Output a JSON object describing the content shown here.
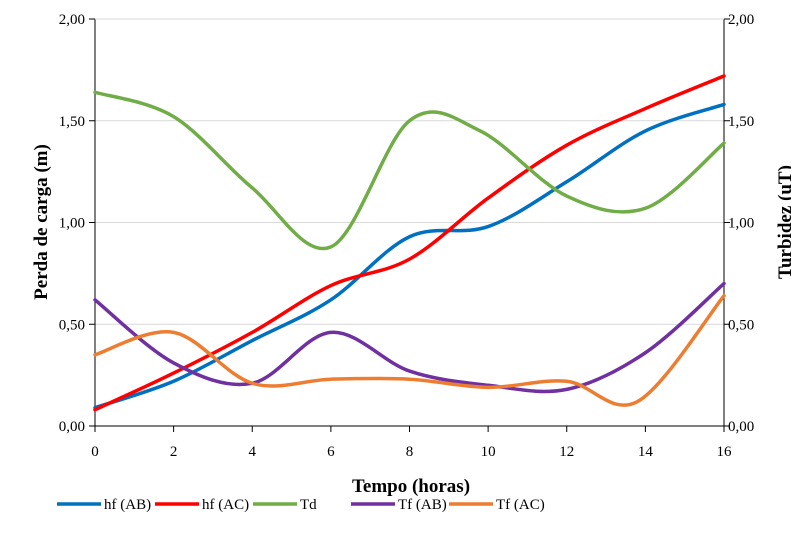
{
  "chart_data": {
    "type": "line",
    "xlabel": "Tempo (horas)",
    "ylabel": "Perda de carga (m)",
    "y2label": "Turbidez (uT)",
    "xlim": [
      0,
      16
    ],
    "ylim": [
      0,
      2
    ],
    "y2lim": [
      0,
      2
    ],
    "x_ticks": [
      "0",
      "2",
      "4",
      "6",
      "8",
      "10",
      "12",
      "14",
      "16"
    ],
    "y_ticks": [
      "0,00",
      "0,50",
      "1,00",
      "1,50",
      "2,00"
    ],
    "y2_ticks": [
      "0,00",
      "0,50",
      "1,00",
      "1,50",
      "2,00"
    ],
    "grid": true,
    "legend_position": "bottom",
    "series": [
      {
        "name": "hf (AB)",
        "color": "#0070C0",
        "axis": "left",
        "x": [
          0,
          2,
          4,
          6,
          8,
          10,
          12,
          14,
          16
        ],
        "y": [
          0.09,
          0.22,
          0.42,
          0.62,
          0.93,
          0.98,
          1.2,
          1.45,
          1.58
        ]
      },
      {
        "name": "hf (AC)",
        "color": "#FF0000",
        "axis": "left",
        "x": [
          0,
          2,
          4,
          6,
          8,
          10,
          12,
          14,
          16
        ],
        "y": [
          0.08,
          0.26,
          0.46,
          0.69,
          0.82,
          1.12,
          1.38,
          1.56,
          1.72
        ]
      },
      {
        "name": "Td",
        "color": "#70AD47",
        "axis": "right",
        "x": [
          0,
          2,
          4,
          6,
          8,
          9.8,
          12,
          14,
          16
        ],
        "y": [
          1.64,
          1.52,
          1.17,
          0.88,
          1.5,
          1.45,
          1.13,
          1.07,
          1.39
        ]
      },
      {
        "name": "Tf (AB)",
        "color": "#7030A0",
        "axis": "right",
        "x": [
          0,
          2,
          4,
          6,
          8,
          10,
          12,
          14,
          16
        ],
        "y": [
          0.62,
          0.31,
          0.21,
          0.46,
          0.27,
          0.2,
          0.18,
          0.36,
          0.7
        ]
      },
      {
        "name": "Tf (AC)",
        "color": "#ED7D31",
        "axis": "right",
        "x": [
          0,
          2,
          4,
          6,
          8,
          10,
          12,
          13.8,
          16
        ],
        "y": [
          0.35,
          0.46,
          0.21,
          0.23,
          0.23,
          0.19,
          0.22,
          0.12,
          0.64
        ]
      }
    ]
  }
}
